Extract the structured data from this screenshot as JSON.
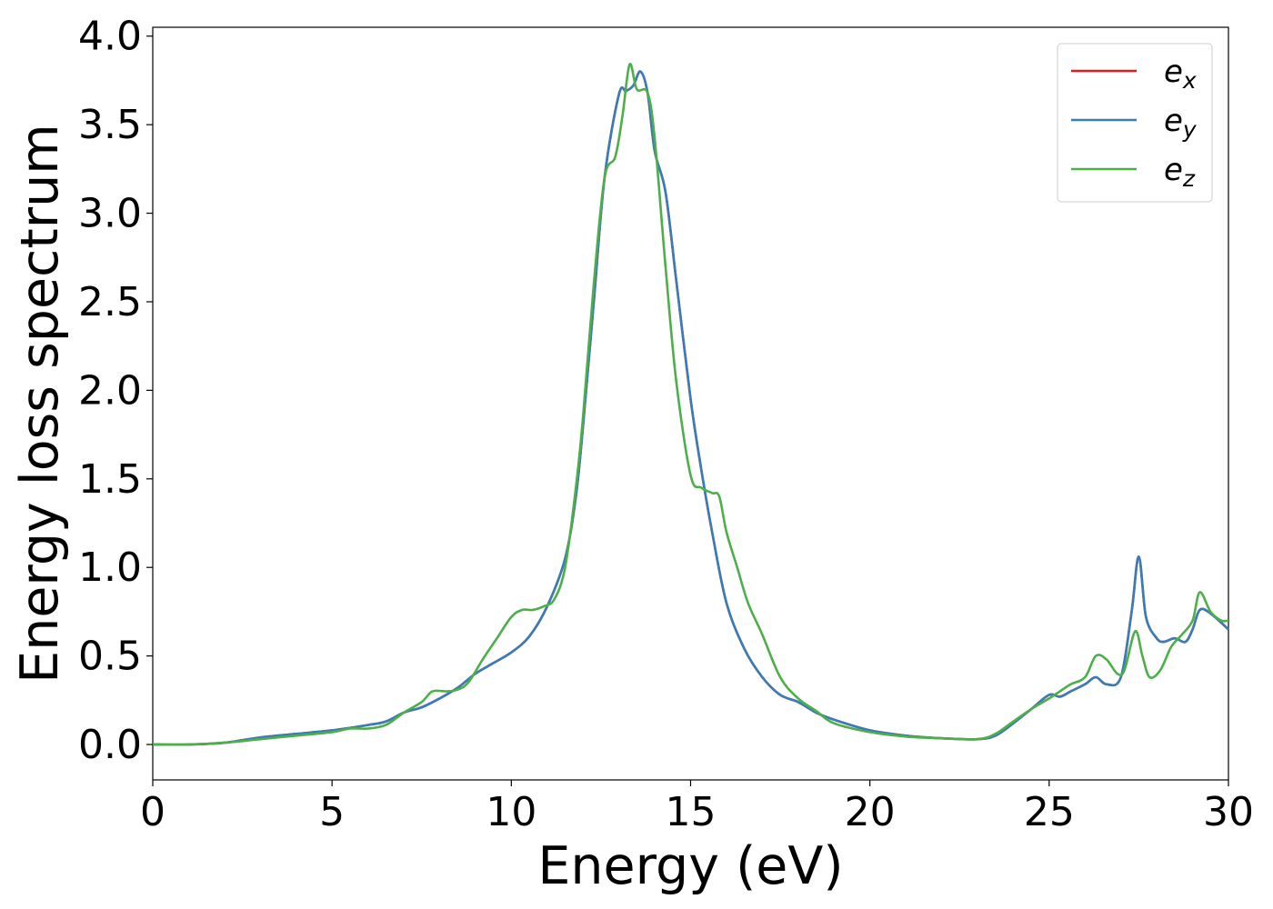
{
  "chart_data": {
    "type": "line",
    "title": "",
    "xlabel": "Energy (eV)",
    "ylabel": "Energy loss spectrum",
    "xlim": [
      0,
      30
    ],
    "ylim": [
      -0.2,
      4.05
    ],
    "x_ticks": [
      0,
      5,
      10,
      15,
      20,
      25,
      30
    ],
    "x_tick_labels": [
      "0",
      "5",
      "10",
      "15",
      "20",
      "25",
      "30"
    ],
    "y_ticks": [
      0.0,
      0.5,
      1.0,
      1.5,
      2.0,
      2.5,
      3.0,
      3.5,
      4.0
    ],
    "y_tick_labels": [
      "0.0",
      "0.5",
      "1.0",
      "1.5",
      "2.0",
      "2.5",
      "3.0",
      "3.5",
      "4.0"
    ],
    "grid": false,
    "legend_position": "top-right",
    "series": [
      {
        "name": "e_x",
        "label_base": "e",
        "label_sub": "x",
        "color": "#e41a1c",
        "x": [
          0,
          1,
          2,
          3,
          4,
          5,
          6,
          6.5,
          7,
          7.5,
          8,
          8.5,
          9,
          9.5,
          10,
          10.5,
          11,
          11.5,
          11.8,
          12,
          12.3,
          12.6,
          13,
          13.2,
          13.4,
          13.6,
          13.8,
          14,
          14.3,
          14.6,
          15,
          15.3,
          15.6,
          16,
          16.5,
          17,
          17.5,
          18,
          18.5,
          19,
          20,
          21,
          22,
          23,
          23.5,
          24,
          24.5,
          25,
          25.3,
          25.6,
          26,
          26.3,
          26.6,
          27,
          27.3,
          27.5,
          27.7,
          28,
          28.2,
          28.5,
          28.8,
          29,
          29.2,
          29.5,
          30
        ],
        "y": [
          0.0,
          0.0,
          0.01,
          0.04,
          0.06,
          0.08,
          0.11,
          0.13,
          0.18,
          0.21,
          0.26,
          0.32,
          0.4,
          0.46,
          0.52,
          0.61,
          0.78,
          1.05,
          1.4,
          1.8,
          2.5,
          3.2,
          3.67,
          3.69,
          3.72,
          3.8,
          3.68,
          3.35,
          3.12,
          2.62,
          1.95,
          1.55,
          1.2,
          0.8,
          0.54,
          0.38,
          0.28,
          0.24,
          0.18,
          0.14,
          0.08,
          0.05,
          0.035,
          0.03,
          0.05,
          0.12,
          0.2,
          0.28,
          0.27,
          0.3,
          0.34,
          0.38,
          0.34,
          0.38,
          0.75,
          1.06,
          0.72,
          0.6,
          0.58,
          0.6,
          0.58,
          0.65,
          0.76,
          0.74,
          0.65
        ]
      },
      {
        "name": "e_y",
        "label_base": "e",
        "label_sub": "y",
        "color": "#377eb8",
        "x": [
          0,
          1,
          2,
          3,
          4,
          5,
          6,
          6.5,
          7,
          7.5,
          8,
          8.5,
          9,
          9.5,
          10,
          10.5,
          11,
          11.5,
          11.8,
          12,
          12.3,
          12.6,
          13,
          13.2,
          13.4,
          13.6,
          13.8,
          14,
          14.3,
          14.6,
          15,
          15.3,
          15.6,
          16,
          16.5,
          17,
          17.5,
          18,
          18.5,
          19,
          20,
          21,
          22,
          23,
          23.5,
          24,
          24.5,
          25,
          25.3,
          25.6,
          26,
          26.3,
          26.6,
          27,
          27.3,
          27.5,
          27.7,
          28,
          28.2,
          28.5,
          28.8,
          29,
          29.2,
          29.5,
          30
        ],
        "y": [
          0.0,
          0.0,
          0.01,
          0.04,
          0.06,
          0.08,
          0.11,
          0.13,
          0.18,
          0.21,
          0.26,
          0.32,
          0.4,
          0.46,
          0.52,
          0.61,
          0.78,
          1.05,
          1.4,
          1.8,
          2.5,
          3.2,
          3.67,
          3.69,
          3.72,
          3.8,
          3.68,
          3.35,
          3.12,
          2.62,
          1.95,
          1.55,
          1.2,
          0.8,
          0.54,
          0.38,
          0.28,
          0.24,
          0.18,
          0.14,
          0.08,
          0.05,
          0.035,
          0.03,
          0.05,
          0.12,
          0.2,
          0.28,
          0.27,
          0.3,
          0.34,
          0.38,
          0.34,
          0.38,
          0.75,
          1.06,
          0.72,
          0.6,
          0.58,
          0.6,
          0.58,
          0.65,
          0.76,
          0.74,
          0.65
        ]
      },
      {
        "name": "e_z",
        "label_base": "e",
        "label_sub": "z",
        "color": "#4daf4a",
        "x": [
          0,
          1,
          2,
          3,
          4,
          5,
          5.5,
          6,
          6.5,
          7,
          7.5,
          7.8,
          8.2,
          8.5,
          8.8,
          9.2,
          9.6,
          10,
          10.3,
          10.6,
          10.9,
          11.2,
          11.5,
          11.8,
          12,
          12.3,
          12.6,
          12.9,
          13.1,
          13.3,
          13.5,
          13.8,
          14,
          14.3,
          14.6,
          15,
          15.3,
          15.6,
          15.8,
          16,
          16.3,
          16.6,
          17,
          17.5,
          18,
          18.5,
          19,
          20,
          21,
          22,
          23,
          23.5,
          24,
          24.5,
          25,
          25.3,
          25.6,
          26,
          26.3,
          26.6,
          26.9,
          27.1,
          27.4,
          27.6,
          27.8,
          28.1,
          28.4,
          28.7,
          29,
          29.2,
          29.5,
          29.8,
          30
        ],
        "y": [
          0.0,
          0.0,
          0.01,
          0.03,
          0.05,
          0.07,
          0.09,
          0.09,
          0.11,
          0.18,
          0.24,
          0.3,
          0.3,
          0.31,
          0.35,
          0.48,
          0.6,
          0.72,
          0.76,
          0.76,
          0.78,
          0.82,
          1.0,
          1.45,
          1.85,
          2.6,
          3.2,
          3.32,
          3.55,
          3.84,
          3.7,
          3.68,
          3.42,
          2.7,
          2.05,
          1.52,
          1.45,
          1.42,
          1.4,
          1.2,
          1.0,
          0.8,
          0.62,
          0.38,
          0.26,
          0.19,
          0.12,
          0.07,
          0.045,
          0.035,
          0.03,
          0.06,
          0.13,
          0.2,
          0.26,
          0.3,
          0.34,
          0.38,
          0.5,
          0.48,
          0.4,
          0.42,
          0.64,
          0.5,
          0.38,
          0.42,
          0.55,
          0.62,
          0.7,
          0.86,
          0.75,
          0.7,
          0.7
        ]
      }
    ]
  }
}
